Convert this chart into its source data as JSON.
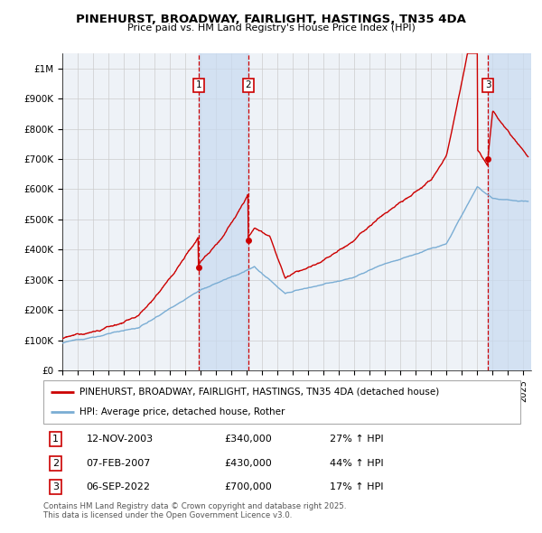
{
  "title": "PINEHURST, BROADWAY, FAIRLIGHT, HASTINGS, TN35 4DA",
  "subtitle": "Price paid vs. HM Land Registry's House Price Index (HPI)",
  "ylabel_ticks": [
    "£0",
    "£100K",
    "£200K",
    "£300K",
    "£400K",
    "£500K",
    "£600K",
    "£700K",
    "£800K",
    "£900K",
    "£1M"
  ],
  "ytick_vals": [
    0,
    100000,
    200000,
    300000,
    400000,
    500000,
    600000,
    700000,
    800000,
    900000,
    1000000
  ],
  "xmin": 1995.0,
  "xmax": 2025.5,
  "ymin": 0,
  "ymax": 1050000,
  "sale_dates": [
    2003.87,
    2007.1,
    2022.68
  ],
  "sale_prices": [
    340000,
    430000,
    700000
  ],
  "sale_labels": [
    "1",
    "2",
    "3"
  ],
  "sale_annotations": [
    [
      "12-NOV-2003",
      "£340,000",
      "27% ↑ HPI"
    ],
    [
      "07-FEB-2007",
      "£430,000",
      "44% ↑ HPI"
    ],
    [
      "06-SEP-2022",
      "£700,000",
      "17% ↑ HPI"
    ]
  ],
  "legend_line1": "PINEHURST, BROADWAY, FAIRLIGHT, HASTINGS, TN35 4DA (detached house)",
  "legend_line2": "HPI: Average price, detached house, Rother",
  "footer": "Contains HM Land Registry data © Crown copyright and database right 2025.\nThis data is licensed under the Open Government Licence v3.0.",
  "line_color_red": "#cc0000",
  "line_color_blue": "#7aadd4",
  "background_color": "#eef2f7",
  "grid_color": "#cccccc",
  "shade_color": "#c8daf0"
}
